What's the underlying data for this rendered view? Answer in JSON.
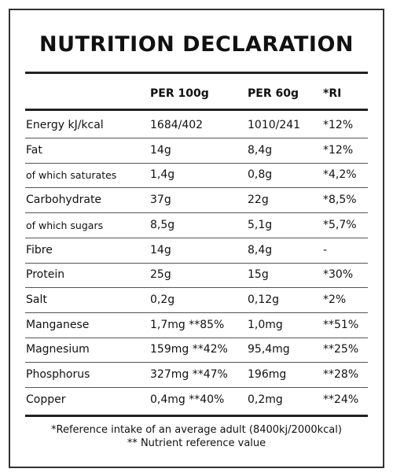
{
  "title": "NUTRITION DECLARATION",
  "columns": [
    "PER 100g",
    "PER 60g",
    "*RI"
  ],
  "rows": [
    {
      "name": "Energy kJ/kcal",
      "per100": "1684/402",
      "per60": "1010/241",
      "ri": "*12%"
    },
    {
      "name": "Fat",
      "per100": "14g",
      "per60": "8,4g",
      "ri": "*12%"
    },
    {
      "name": "of which saturates",
      "per100": "1,4g",
      "per60": "0,8g",
      "ri": "*4,2%"
    },
    {
      "name": "Carbohydrate",
      "per100": "37g",
      "per60": "22g",
      "ri": "*8,5%"
    },
    {
      "name": "of which sugars",
      "per100": "8,5g",
      "per60": "5,1g",
      "ri": "*5,7%"
    },
    {
      "name": "Fibre",
      "per100": "14g",
      "per60": "8,4g",
      "ri": "-"
    },
    {
      "name": "Protein",
      "per100": "25g",
      "per60": "15g",
      "ri": "*30%"
    },
    {
      "name": "Salt",
      "per100": "0,2g",
      "per60": "0,12g",
      "ri": "*2%"
    },
    {
      "name": "Manganese",
      "per100": "1,7mg **85%",
      "per60": "1,0mg",
      "ri": "**51%"
    },
    {
      "name": "Magnesium",
      "per100": "159mg **42%",
      "per60": "95,4mg",
      "ri": "**25%"
    },
    {
      "name": "Phosphorus",
      "per100": "327mg **47%",
      "per60": "196mg",
      "ri": "**28%"
    },
    {
      "name": "Copper",
      "per100": "0,4mg **40%",
      "per60": "0,2mg",
      "ri": "**24%"
    }
  ],
  "footnotes": [
    "*Reference intake of an average adult (8400kj/2000kcal)",
    "** Nutrient reference value"
  ]
}
